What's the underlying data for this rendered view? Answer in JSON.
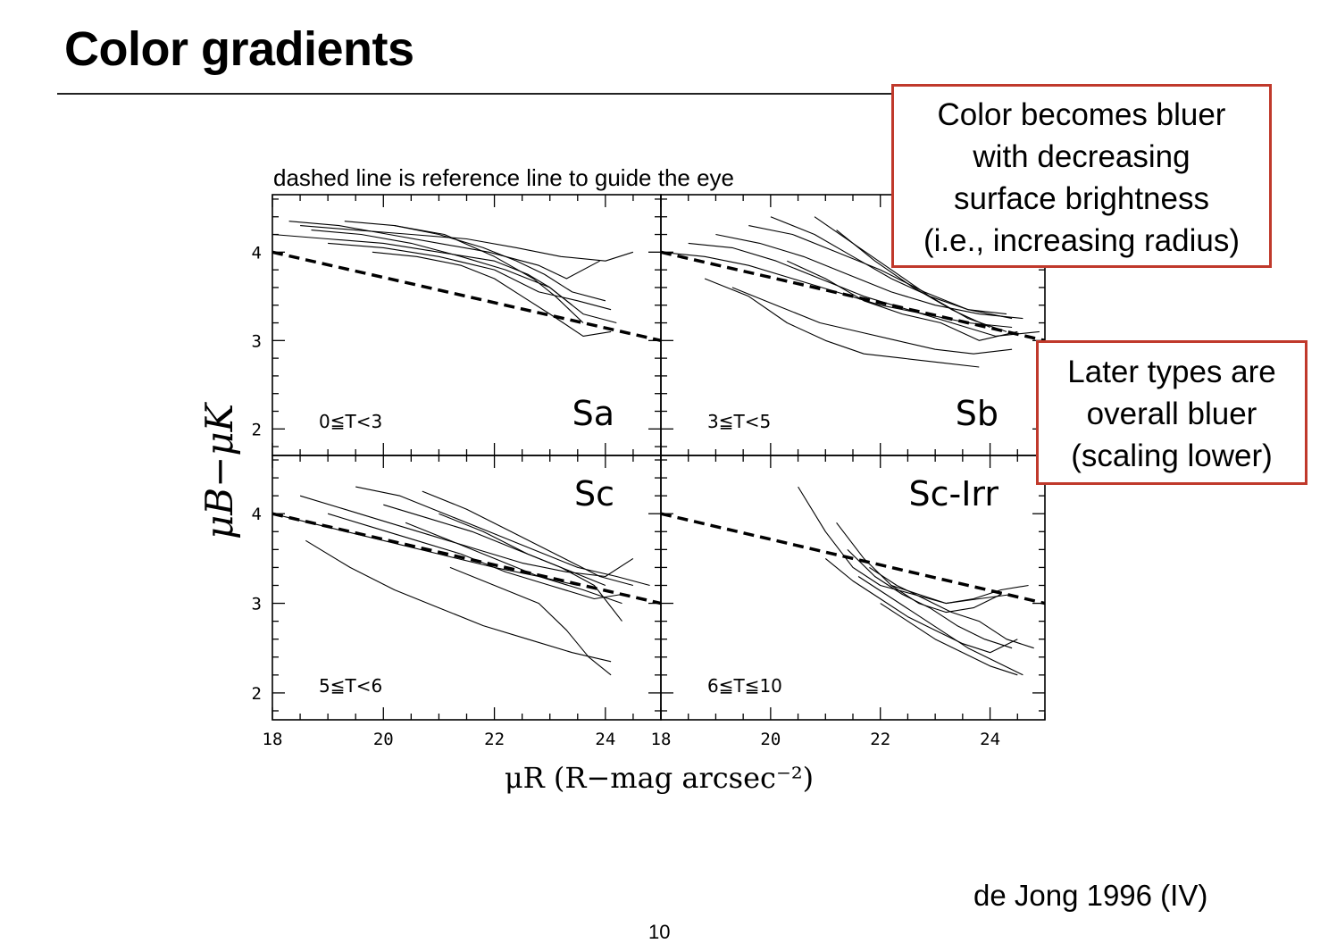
{
  "slide": {
    "title": "Color gradients",
    "subtitle": "dashed line is reference line to guide the eye",
    "callouts": [
      {
        "lines": [
          "Color becomes bluer",
          "with decreasing",
          "surface brightness",
          "(i.e., increasing radius)"
        ]
      },
      {
        "lines": [
          "Later types are",
          "overall bluer",
          "(scaling lower)"
        ]
      }
    ],
    "citation": "de Jong 1996 (IV)",
    "page_number": "10"
  },
  "colors": {
    "callout_border": "#c0392b",
    "ink": "#000000"
  },
  "chart_data": {
    "type": "line",
    "xlabel": "μR (R−mag arcsec⁻²)",
    "ylabel": "μB−μK",
    "xlim": [
      18,
      25
    ],
    "ylim": [
      1.7,
      4.65
    ],
    "x_ticks": [
      "18",
      "20",
      "22",
      "24"
    ],
    "y_ticks": [
      "2",
      "3",
      "4"
    ],
    "reference_line": {
      "style": "dashed",
      "x": [
        18,
        25
      ],
      "y": [
        4.0,
        3.0
      ]
    },
    "panels": [
      {
        "label": "Sa",
        "type_range": "0≦T<3",
        "series": [
          {
            "x": [
              18.0,
              19.0,
              20.0,
              21.0,
              22.0,
              22.6,
              23.0,
              23.4
            ],
            "y": [
              4.2,
              4.15,
              4.1,
              4.0,
              3.9,
              3.75,
              3.6,
              3.4
            ]
          },
          {
            "x": [
              18.3,
              19.2,
              20.1,
              21.0,
              21.9,
              22.8,
              23.3,
              23.9
            ],
            "y": [
              4.35,
              4.3,
              4.2,
              4.1,
              4.0,
              3.85,
              3.7,
              3.9
            ]
          },
          {
            "x": [
              18.5,
              19.5,
              20.5,
              21.5,
              22.4,
              23.2,
              24.0,
              24.5
            ],
            "y": [
              4.3,
              4.25,
              4.2,
              4.15,
              4.05,
              3.95,
              3.9,
              4.0
            ]
          },
          {
            "x": [
              18.7,
              19.6,
              20.5,
              21.4,
              22.2,
              23.0,
              23.6,
              24.2
            ],
            "y": [
              4.25,
              4.2,
              4.1,
              3.95,
              3.8,
              3.6,
              3.3,
              3.2
            ]
          },
          {
            "x": [
              19.0,
              20.0,
              21.0,
              22.0,
              22.8,
              23.5,
              24.1
            ],
            "y": [
              4.1,
              4.05,
              3.95,
              3.8,
              3.55,
              3.45,
              3.35
            ]
          },
          {
            "x": [
              19.3,
              20.2,
              21.1,
              22.0,
              22.7,
              23.1,
              23.6
            ],
            "y": [
              4.35,
              4.3,
              4.2,
              3.95,
              3.7,
              3.5,
              3.2
            ]
          },
          {
            "x": [
              19.8,
              20.6,
              21.4,
              22.0,
              22.5,
              23.0,
              23.6,
              24.1
            ],
            "y": [
              4.0,
              3.95,
              3.85,
              3.7,
              3.5,
              3.3,
              3.05,
              3.1
            ]
          },
          {
            "x": [
              20.2,
              21.0,
              21.8,
              22.4,
              22.9,
              23.4,
              24.0
            ],
            "y": [
              4.3,
              4.2,
              4.05,
              3.9,
              3.75,
              3.55,
              3.45
            ]
          }
        ]
      },
      {
        "label": "Sb",
        "type_range": "3≦T<5",
        "series": [
          {
            "x": [
              18.0,
              18.8,
              19.6,
              20.4,
              21.2,
              22.0,
              22.8,
              23.6,
              24.4
            ],
            "y": [
              4.0,
              3.95,
              3.85,
              3.7,
              3.55,
              3.4,
              3.3,
              3.2,
              3.15
            ]
          },
          {
            "x": [
              18.5,
              19.3,
              20.1,
              20.9,
              21.7,
              22.5,
              23.3,
              24.1,
              24.9
            ],
            "y": [
              4.1,
              4.05,
              3.9,
              3.7,
              3.5,
              3.35,
              3.2,
              3.05,
              3.1
            ]
          },
          {
            "x": [
              18.8,
              19.6,
              20.3,
              21.0,
              21.7,
              22.4,
              23.1,
              23.8
            ],
            "y": [
              3.7,
              3.5,
              3.2,
              3.0,
              2.85,
              2.8,
              2.75,
              2.7
            ]
          },
          {
            "x": [
              19.0,
              19.8,
              20.6,
              21.4,
              22.2,
              23.0,
              23.8,
              24.6
            ],
            "y": [
              4.2,
              4.1,
              3.95,
              3.75,
              3.55,
              3.4,
              3.3,
              3.25
            ]
          },
          {
            "x": [
              19.3,
              20.1,
              20.9,
              21.6,
              22.3,
              23.0,
              23.7,
              24.4
            ],
            "y": [
              3.6,
              3.4,
              3.2,
              3.1,
              3.0,
              2.9,
              2.85,
              2.9
            ]
          },
          {
            "x": [
              19.6,
              20.4,
              21.2,
              22.0,
              22.8,
              23.6,
              24.4
            ],
            "y": [
              4.3,
              4.2,
              4.0,
              3.8,
              3.55,
              3.35,
              3.25
            ]
          },
          {
            "x": [
              20.0,
              20.8,
              21.5,
              22.2,
              22.9,
              23.6,
              24.3
            ],
            "y": [
              4.4,
              4.2,
              3.95,
              3.7,
              3.5,
              3.35,
              3.3
            ]
          },
          {
            "x": [
              20.3,
              21.0,
              21.7,
              22.4,
              23.1,
              23.8,
              24.5
            ],
            "y": [
              3.9,
              3.7,
              3.45,
              3.3,
              3.2,
              3.0,
              3.1
            ]
          },
          {
            "x": [
              20.8,
              21.5,
              22.2,
              22.9,
              23.6,
              24.3
            ],
            "y": [
              4.4,
              4.1,
              3.8,
              3.5,
              3.25,
              3.1
            ]
          },
          {
            "x": [
              21.2,
              21.9,
              22.6,
              23.3,
              24.0
            ],
            "y": [
              4.25,
              3.9,
              3.6,
              3.35,
              3.15
            ]
          }
        ]
      },
      {
        "label": "Sc",
        "type_range": "5≦T<6",
        "series": [
          {
            "x": [
              18.0,
              19.0,
              20.0,
              21.0,
              22.0,
              22.8,
              23.5
            ],
            "y": [
              4.0,
              3.85,
              3.7,
              3.55,
              3.4,
              3.3,
              3.2
            ]
          },
          {
            "x": [
              18.5,
              19.3,
              20.1,
              20.9,
              21.7,
              22.5,
              23.3,
              24.0,
              24.5
            ],
            "y": [
              4.2,
              4.05,
              3.9,
              3.75,
              3.6,
              3.45,
              3.35,
              3.3,
              3.5
            ]
          },
          {
            "x": [
              18.6,
              19.4,
              20.2,
              21.0,
              21.8,
              22.6,
              23.4,
              24.1
            ],
            "y": [
              3.7,
              3.4,
              3.15,
              2.95,
              2.75,
              2.6,
              2.45,
              2.35
            ]
          },
          {
            "x": [
              19.0,
              19.8,
              20.6,
              21.4,
              22.2,
              23.0,
              23.8,
              24.3
            ],
            "y": [
              4.0,
              3.85,
              3.7,
              3.55,
              3.35,
              3.2,
              3.05,
              3.1
            ]
          },
          {
            "x": [
              19.5,
              20.3,
              21.1,
              21.9,
              22.7,
              23.5,
              24.2,
              24.8
            ],
            "y": [
              4.3,
              4.2,
              4.0,
              3.8,
              3.6,
              3.4,
              3.3,
              3.2
            ]
          },
          {
            "x": [
              20.0,
              20.8,
              21.6,
              22.4,
              23.2,
              23.8,
              24.3
            ],
            "y": [
              4.1,
              3.95,
              3.8,
              3.6,
              3.4,
              3.2,
              2.8
            ]
          },
          {
            "x": [
              20.4,
              21.2,
              22.0,
              22.8,
              23.6,
              24.3
            ],
            "y": [
              3.9,
              3.7,
              3.5,
              3.3,
              3.15,
              3.0
            ]
          },
          {
            "x": [
              20.7,
              21.5,
              22.3,
              23.1,
              23.9,
              24.5
            ],
            "y": [
              4.25,
              4.05,
              3.8,
              3.55,
              3.3,
              3.2
            ]
          },
          {
            "x": [
              21.0,
              21.8,
              22.6,
              23.4,
              24.0
            ],
            "y": [
              4.0,
              3.8,
              3.55,
              3.35,
              3.2
            ]
          },
          {
            "x": [
              21.2,
              22.0,
              22.8,
              23.3,
              23.7,
              24.1
            ],
            "y": [
              3.4,
              3.2,
              3.0,
              2.7,
              2.4,
              2.2
            ]
          }
        ]
      },
      {
        "label": "Sc-Irr",
        "type_range": "6≦T≦10",
        "series": [
          {
            "x": [
              20.5,
              21.0,
              21.5,
              22.0,
              22.6,
              23.2,
              23.8,
              24.4
            ],
            "y": [
              4.3,
              3.8,
              3.4,
              3.2,
              3.1,
              3.0,
              3.05,
              3.1
            ]
          },
          {
            "x": [
              21.0,
              21.5,
              22.0,
              22.5,
              23.0,
              23.5,
              24.0,
              24.5
            ],
            "y": [
              3.5,
              3.25,
              3.05,
              2.85,
              2.7,
              2.55,
              2.45,
              2.6
            ]
          },
          {
            "x": [
              21.2,
              21.7,
              22.2,
              22.7,
              23.2,
              23.7,
              24.2
            ],
            "y": [
              3.9,
              3.5,
              3.2,
              3.0,
              2.9,
              2.95,
              3.1
            ]
          },
          {
            "x": [
              21.4,
              21.9,
              22.4,
              22.9,
              23.4,
              23.9,
              24.4
            ],
            "y": [
              3.6,
              3.3,
              3.1,
              2.95,
              2.75,
              2.6,
              2.5
            ]
          },
          {
            "x": [
              21.6,
              22.1,
              22.6,
              23.1,
              23.6,
              24.1,
              24.6
            ],
            "y": [
              3.3,
              3.1,
              2.9,
              2.7,
              2.5,
              2.35,
              2.2
            ]
          },
          {
            "x": [
              21.8,
              22.3,
              22.8,
              23.3,
              23.8,
              24.3,
              24.8
            ],
            "y": [
              3.4,
              3.2,
              3.05,
              2.9,
              2.8,
              2.6,
              2.5
            ]
          },
          {
            "x": [
              22.0,
              22.5,
              23.0,
              23.5,
              24.0,
              24.5
            ],
            "y": [
              3.0,
              2.8,
              2.6,
              2.45,
              2.3,
              2.2
            ]
          },
          {
            "x": [
              22.2,
              22.7,
              23.2,
              23.7,
              24.2,
              24.7
            ],
            "y": [
              3.2,
              3.1,
              3.0,
              3.05,
              3.15,
              3.2
            ]
          }
        ]
      }
    ]
  }
}
